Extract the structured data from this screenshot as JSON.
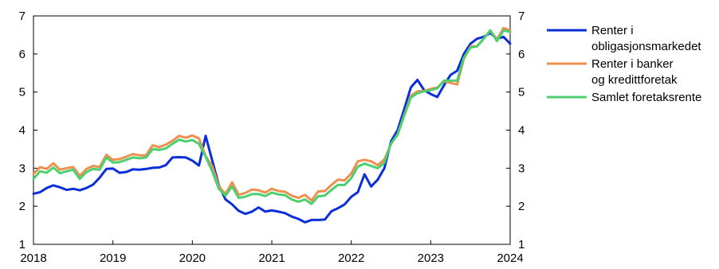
{
  "chart_data": {
    "type": "line",
    "title": "",
    "xlabel": "",
    "ylabel": "",
    "xlim": [
      2018,
      2024
    ],
    "ylim": [
      1,
      7
    ],
    "x_ticks": [
      "2018",
      "2019",
      "2020",
      "2021",
      "2022",
      "2023",
      "2024"
    ],
    "y_ticks": [
      "1",
      "2",
      "3",
      "4",
      "5",
      "6",
      "7"
    ],
    "y_ticks_right": [
      "1",
      "2",
      "3",
      "4",
      "5",
      "6",
      "7"
    ],
    "x_tick_values": [
      2018,
      2019,
      2020,
      2021,
      2022,
      2023,
      2024
    ],
    "y_tick_values": [
      1,
      2,
      3,
      4,
      5,
      6,
      7
    ],
    "legend_position": "right",
    "grid": false,
    "x": [
      2018.0,
      2018.083,
      2018.167,
      2018.25,
      2018.333,
      2018.417,
      2018.5,
      2018.583,
      2018.667,
      2018.75,
      2018.833,
      2018.917,
      2019.0,
      2019.083,
      2019.167,
      2019.25,
      2019.333,
      2019.417,
      2019.5,
      2019.583,
      2019.667,
      2019.75,
      2019.833,
      2019.917,
      2020.0,
      2020.083,
      2020.167,
      2020.25,
      2020.333,
      2020.417,
      2020.5,
      2020.583,
      2020.667,
      2020.75,
      2020.833,
      2020.917,
      2021.0,
      2021.083,
      2021.167,
      2021.25,
      2021.333,
      2021.417,
      2021.5,
      2021.583,
      2021.667,
      2021.75,
      2021.833,
      2021.917,
      2022.0,
      2022.083,
      2022.167,
      2022.25,
      2022.333,
      2022.417,
      2022.5,
      2022.583,
      2022.667,
      2022.75,
      2022.833,
      2022.917,
      2023.0,
      2023.083,
      2023.167,
      2023.25,
      2023.333,
      2023.417,
      2023.5,
      2023.583,
      2023.667,
      2023.75,
      2023.833,
      2023.917,
      2024.0
    ],
    "series": [
      {
        "name": "Renter i obligasjonsmarkedet",
        "color": "#0a2ed8",
        "legend_lines": [
          "Renter i",
          "obligasjonsmarkedet"
        ],
        "values": [
          2.33,
          2.37,
          2.48,
          2.55,
          2.5,
          2.43,
          2.46,
          2.42,
          2.48,
          2.57,
          2.75,
          2.98,
          2.99,
          2.88,
          2.9,
          2.97,
          2.96,
          2.98,
          3.01,
          3.02,
          3.08,
          3.28,
          3.29,
          3.28,
          3.2,
          3.07,
          3.85,
          3.2,
          2.55,
          2.18,
          2.05,
          1.88,
          1.8,
          1.86,
          1.97,
          1.86,
          1.89,
          1.86,
          1.82,
          1.73,
          1.67,
          1.58,
          1.64,
          1.64,
          1.65,
          1.87,
          1.95,
          2.05,
          2.25,
          2.37,
          2.84,
          2.52,
          2.7,
          3.0,
          3.7,
          4.0,
          4.55,
          5.12,
          5.32,
          5.05,
          4.95,
          4.87,
          5.18,
          5.45,
          5.56,
          6.0,
          6.27,
          6.4,
          6.45,
          6.55,
          6.4,
          6.45,
          6.27
        ]
      },
      {
        "name": "Renter i banker og kredittforetak",
        "color": "#ef8f4f",
        "legend_lines": [
          "Renter i banker",
          "og kredittforetak"
        ],
        "values": [
          2.85,
          3.03,
          2.98,
          3.13,
          2.96,
          3.0,
          3.03,
          2.8,
          2.98,
          3.06,
          3.03,
          3.35,
          3.22,
          3.24,
          3.3,
          3.37,
          3.34,
          3.34,
          3.6,
          3.55,
          3.62,
          3.72,
          3.85,
          3.8,
          3.86,
          3.78,
          3.32,
          3.05,
          2.52,
          2.32,
          2.63,
          2.3,
          2.35,
          2.44,
          2.42,
          2.36,
          2.46,
          2.4,
          2.38,
          2.28,
          2.22,
          2.3,
          2.15,
          2.39,
          2.4,
          2.56,
          2.7,
          2.68,
          2.86,
          3.18,
          3.22,
          3.18,
          3.08,
          3.23,
          3.63,
          3.9,
          4.4,
          4.9,
          5.02,
          5.03,
          5.08,
          5.12,
          5.28,
          5.24,
          5.2,
          5.87,
          6.2,
          6.2,
          6.4,
          6.62,
          6.38,
          6.68,
          6.62
        ]
      },
      {
        "name": "Samlet foretaksrente",
        "color": "#4cd06f",
        "legend_lines": [
          "Samlet foretaksrente"
        ],
        "values": [
          2.72,
          2.92,
          2.88,
          3.02,
          2.87,
          2.92,
          2.96,
          2.72,
          2.9,
          2.98,
          2.96,
          3.28,
          3.15,
          3.16,
          3.22,
          3.28,
          3.26,
          3.28,
          3.5,
          3.48,
          3.52,
          3.64,
          3.75,
          3.7,
          3.74,
          3.64,
          3.3,
          2.92,
          2.46,
          2.28,
          2.52,
          2.22,
          2.25,
          2.32,
          2.32,
          2.27,
          2.36,
          2.31,
          2.29,
          2.18,
          2.12,
          2.18,
          2.06,
          2.26,
          2.28,
          2.43,
          2.56,
          2.56,
          2.74,
          3.04,
          3.12,
          3.06,
          3.0,
          3.14,
          3.65,
          3.88,
          4.38,
          4.85,
          4.97,
          5.02,
          5.05,
          5.1,
          5.3,
          5.3,
          5.3,
          5.9,
          6.17,
          6.2,
          6.4,
          6.62,
          6.34,
          6.62,
          6.58
        ]
      }
    ]
  }
}
